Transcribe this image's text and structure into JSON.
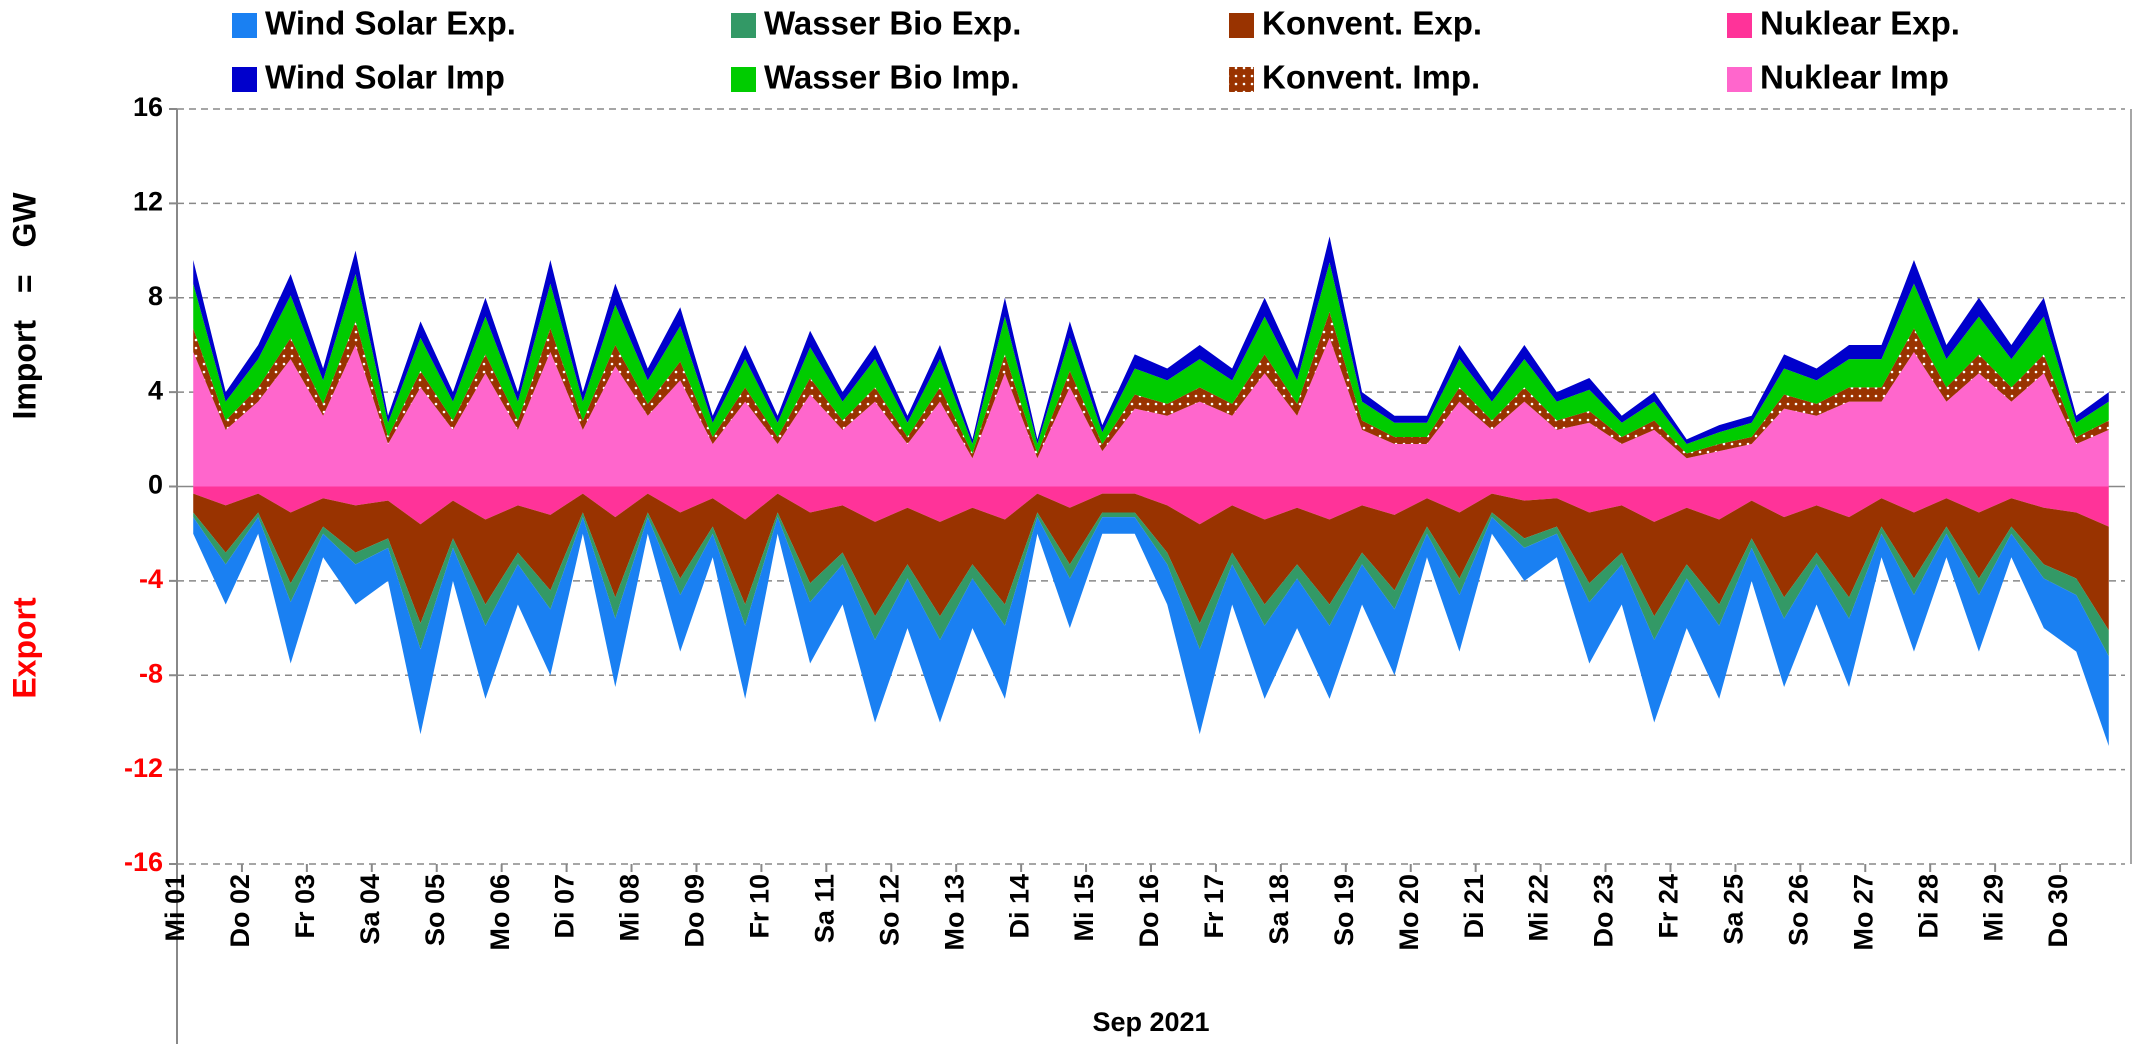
{
  "chart_data": {
    "type": "area",
    "stacked": true,
    "ylabel": "Import = GW",
    "annotations": [
      "Export"
    ],
    "xlabel": "Sep 2021",
    "grid": true,
    "ylim": [
      -16,
      16
    ],
    "yticks": [
      -16,
      -12,
      -8,
      -4,
      0,
      4,
      8,
      12,
      16
    ],
    "categories": [
      "Mi 01",
      null,
      "Do 02",
      null,
      "Fr 03",
      null,
      "Sa 04",
      null,
      "So 05",
      null,
      "Mo 06",
      null,
      "Di 07",
      null,
      "Mi 08",
      null,
      "Do 09",
      null,
      "Fr 10",
      null,
      "Sa 11",
      null,
      "So 12",
      null,
      "Mo 13",
      null,
      "Di 14",
      null,
      "Mi 15",
      null,
      "Do 16",
      null,
      "Fr 17",
      null,
      "Sa 18",
      null,
      "So 19",
      null,
      "Mo 20",
      null,
      "Di 21",
      null,
      "Mi 22",
      null,
      "Do 23",
      null,
      "Fr 24",
      null,
      "Sa 25",
      null,
      "So 26",
      null,
      "Mo 27",
      null,
      "Di 28",
      null,
      "Mi 29",
      null,
      "Do 30",
      null
    ],
    "series": [
      {
        "name": "Wind Solar Exp.",
        "color": "#1a80f2",
        "values": [
          -0.7,
          -1.7,
          -0.7,
          -2.6,
          -1,
          -1.7,
          -1.4,
          -3.6,
          -1.4,
          -3.1,
          -1.7,
          -2.8,
          -0.7,
          -2.9,
          -0.7,
          -2.4,
          -1,
          -3.1,
          -0.7,
          -2.6,
          -1.7,
          -3.5,
          -2.1,
          -3.5,
          -2.1,
          -3.1,
          -0.7,
          -2.1,
          -0.7,
          -0.7,
          -1.7,
          -3.6,
          -1.7,
          -3.1,
          -2.1,
          -3.1,
          -1.7,
          -2.8,
          -1,
          -2.4,
          -0.7,
          -1.4,
          -1,
          -2.6,
          -1.7,
          -3.5,
          -2.1,
          -3.1,
          -1.4,
          -2.9,
          -1.7,
          -2.9,
          -1,
          -2.4,
          -1,
          -2.4,
          -1,
          -2.1,
          -2.4,
          -3.8
        ]
      },
      {
        "name": "Wasser Bio Exp.",
        "color": "#339966",
        "values": [
          -0.2,
          -0.5,
          -0.2,
          -0.8,
          -0.3,
          -0.5,
          -0.4,
          -1.1,
          -0.4,
          -0.9,
          -0.5,
          -0.8,
          -0.2,
          -0.9,
          -0.2,
          -0.7,
          -0.3,
          -0.9,
          -0.2,
          -0.8,
          -0.5,
          -1,
          -0.6,
          -1,
          -0.6,
          -0.9,
          -0.2,
          -0.6,
          -0.2,
          -0.2,
          -0.5,
          -1.1,
          -0.5,
          -0.9,
          -0.6,
          -0.9,
          -0.5,
          -0.8,
          -0.3,
          -0.7,
          -0.2,
          -0.4,
          -0.3,
          -0.8,
          -0.5,
          -1,
          -0.6,
          -0.9,
          -0.4,
          -0.9,
          -0.5,
          -0.9,
          -0.3,
          -0.7,
          -0.3,
          -0.7,
          -0.3,
          -0.6,
          -0.7,
          -1.1
        ]
      },
      {
        "name": "Konvent. Exp.",
        "color": "#993300",
        "values": [
          -0.8,
          -2,
          -0.8,
          -3,
          -1.2,
          -2,
          -1.6,
          -4.2,
          -1.6,
          -3.6,
          -2,
          -3.2,
          -0.8,
          -3.4,
          -0.8,
          -2.8,
          -1.2,
          -3.6,
          -0.8,
          -3,
          -2,
          -4,
          -2.4,
          -4,
          -2.4,
          -3.6,
          -0.8,
          -2.4,
          -0.8,
          -0.8,
          -2,
          -4.2,
          -2,
          -3.6,
          -2.4,
          -3.6,
          -2,
          -3.2,
          -1.2,
          -2.8,
          -0.8,
          -1.6,
          -1.2,
          -3,
          -2,
          -4,
          -2.4,
          -3.6,
          -1.6,
          -3.4,
          -2,
          -3.4,
          -1.2,
          -2.8,
          -1.2,
          -2.8,
          -1.2,
          -2.4,
          -2.8,
          -4.4
        ]
      },
      {
        "name": "Nuklear Exp.",
        "color": "#ff3399",
        "values": [
          -0.3,
          -0.8,
          -0.3,
          -1.1,
          -0.5,
          -0.8,
          -0.6,
          -1.6,
          -0.6,
          -1.4,
          -0.8,
          -1.2,
          -0.3,
          -1.3,
          -0.3,
          -1.1,
          -0.5,
          -1.4,
          -0.3,
          -1.1,
          -0.8,
          -1.5,
          -0.9,
          -1.5,
          -0.9,
          -1.4,
          -0.3,
          -0.9,
          -0.3,
          -0.3,
          -0.8,
          -1.6,
          -0.8,
          -1.4,
          -0.9,
          -1.4,
          -0.8,
          -1.2,
          -0.5,
          -1.1,
          -0.3,
          -0.6,
          -0.5,
          -1.1,
          -0.8,
          -1.5,
          -0.9,
          -1.4,
          -0.6,
          -1.3,
          -0.8,
          -1.3,
          -0.5,
          -1.1,
          -0.5,
          -1.1,
          -0.5,
          -0.9,
          -1.1,
          -1.7
        ]
      },
      {
        "name": "Wind Solar Imp",
        "color": "#0000cc",
        "values": [
          1,
          0.4,
          0.6,
          0.9,
          0.5,
          1,
          0.3,
          0.7,
          0.4,
          0.8,
          0.4,
          1,
          0.4,
          0.9,
          0.5,
          0.8,
          0.3,
          0.6,
          0.3,
          0.7,
          0.4,
          0.6,
          0.3,
          0.6,
          0.2,
          0.8,
          0.2,
          0.7,
          0.3,
          0.6,
          0.5,
          0.6,
          0.5,
          0.8,
          0.5,
          1.1,
          0.4,
          0.3,
          0.3,
          0.6,
          0.4,
          0.6,
          0.4,
          0.5,
          0.3,
          0.4,
          0.2,
          0.3,
          0.3,
          0.6,
          0.5,
          0.6,
          0.6,
          1,
          0.6,
          0.8,
          0.6,
          0.8,
          0.3,
          0.4
        ]
      },
      {
        "name": "Wasser Bio Imp.",
        "color": "#00cc00",
        "values": [
          1.9,
          0.8,
          1.2,
          1.8,
          1,
          2,
          0.6,
          1.4,
          0.8,
          1.6,
          0.8,
          1.9,
          0.8,
          1.7,
          1,
          1.5,
          0.6,
          1.2,
          0.6,
          1.3,
          0.8,
          1.2,
          0.6,
          1.2,
          0.4,
          1.6,
          0.4,
          1.4,
          0.5,
          1.1,
          1,
          1.2,
          1,
          1.6,
          1,
          2.1,
          0.8,
          0.6,
          0.6,
          1.2,
          0.8,
          1.2,
          0.8,
          0.9,
          0.6,
          0.8,
          0.4,
          0.5,
          0.6,
          1.1,
          1,
          1.2,
          1.2,
          1.9,
          1.2,
          1.6,
          1.2,
          1.6,
          0.6,
          0.8
        ]
      },
      {
        "name": "Konvent. Imp.",
        "color": "#993300",
        "pattern": "dots",
        "values": [
          1,
          0.4,
          0.6,
          0.9,
          0.5,
          1,
          0.3,
          0.7,
          0.4,
          0.8,
          0.4,
          1,
          0.4,
          0.9,
          0.5,
          0.8,
          0.3,
          0.6,
          0.3,
          0.7,
          0.4,
          0.6,
          0.3,
          0.6,
          0.2,
          0.8,
          0.2,
          0.7,
          0.3,
          0.6,
          0.5,
          0.6,
          0.5,
          0.8,
          0.5,
          1.1,
          0.4,
          0.3,
          0.3,
          0.6,
          0.4,
          0.6,
          0.4,
          0.5,
          0.3,
          0.4,
          0.2,
          0.3,
          0.3,
          0.6,
          0.5,
          0.6,
          0.6,
          1,
          0.6,
          0.8,
          0.6,
          0.8,
          0.3,
          0.4
        ]
      },
      {
        "name": "Nuklear Imp",
        "color": "#ff66cc",
        "values": [
          5.7,
          2.4,
          3.6,
          5.4,
          3,
          6,
          1.8,
          4.2,
          2.4,
          4.8,
          2.4,
          5.7,
          2.4,
          5.1,
          3,
          4.5,
          1.8,
          3.6,
          1.8,
          3.9,
          2.4,
          3.6,
          1.8,
          3.6,
          1.2,
          4.8,
          1.2,
          4.2,
          1.5,
          3.3,
          3,
          3.6,
          3,
          4.8,
          3,
          6.3,
          2.4,
          1.8,
          1.8,
          3.6,
          2.4,
          3.6,
          2.4,
          2.7,
          1.8,
          2.4,
          1.2,
          1.5,
          1.8,
          3.3,
          3,
          3.6,
          3.6,
          5.7,
          3.6,
          4.8,
          3.6,
          4.8,
          1.8,
          2.4
        ]
      }
    ]
  }
}
